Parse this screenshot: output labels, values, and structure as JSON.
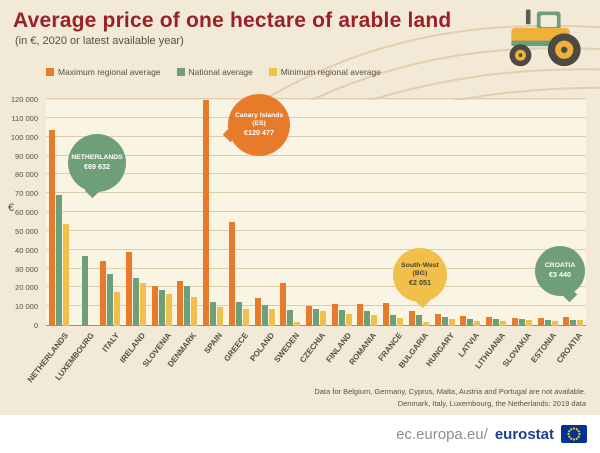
{
  "header": {
    "title": "Average price of one hectare of arable land",
    "subtitle": "(in €, 2020 or latest available year)"
  },
  "colors": {
    "maximum": "#e87b2a",
    "national": "#6f9f78",
    "minimum": "#f0c04a",
    "title_red": "#9b2126",
    "background": "#f3e9d7",
    "eu_blue": "#003399",
    "star_yellow": "#ffcc00"
  },
  "chart_data": {
    "type": "bar",
    "title": "Average price of one hectare of arable land",
    "subtitle": "(in €, 2020 or latest available year)",
    "ylabel": "€",
    "xlabel": "",
    "ylim": [
      0,
      120000
    ],
    "yticks": [
      0,
      10000,
      20000,
      30000,
      40000,
      50000,
      60000,
      70000,
      80000,
      90000,
      100000,
      110000,
      120000
    ],
    "grid": true,
    "legend_position": "top-left",
    "categories": [
      "NETHERLANDS",
      "LUXEMBOURG",
      "ITALY",
      "IRELAND",
      "SLOVENIA",
      "DENMARK",
      "SPAIN",
      "GREECE",
      "POLAND",
      "SWEDEN",
      "CZECHIA",
      "FINLAND",
      "ROMANIA",
      "FRANCE",
      "BULGARIA",
      "HUNGARY",
      "LATVIA",
      "LITHUANIA",
      "SLOVAKIA",
      "ESTONIA",
      "CROATIA"
    ],
    "series": [
      {
        "name": "Maximum regional average",
        "color": "#e87b2a",
        "values": [
          104000,
          null,
          34500,
          39500,
          21500,
          24000,
          120477,
          55000,
          15000,
          23000,
          10500,
          11500,
          11500,
          12000,
          8000,
          6500,
          5200,
          4800,
          4300,
          4100,
          4600
        ]
      },
      {
        "name": "National average",
        "color": "#6f9f78",
        "values": [
          69632,
          37000,
          27500,
          25500,
          19000,
          21500,
          13000,
          12800,
          11000,
          8500,
          9300,
          8700,
          8200,
          6000,
          5900,
          4900,
          3800,
          3700,
          3700,
          3300,
          3440
        ]
      },
      {
        "name": "Minimum regional average",
        "color": "#f0c04a",
        "values": [
          54000,
          null,
          18000,
          23000,
          17000,
          15500,
          10000,
          9000,
          9000,
          2000,
          8200,
          6500,
          6000,
          4500,
          2051,
          3900,
          2700,
          2800,
          3200,
          2600,
          3000
        ]
      }
    ],
    "callouts": [
      {
        "label": "NETHERLANDS",
        "value": "€69 632",
        "color": "green"
      },
      {
        "label": "Canary Islands (ES)",
        "value": "€120 477",
        "color": "orange"
      },
      {
        "label": "South-West (BG)",
        "value": "€2 051",
        "color": "yellow"
      },
      {
        "label": "CROATIA",
        "value": "€3 440",
        "color": "green"
      }
    ]
  },
  "notes": [
    "Data for Belgium, Germany, Cyprus, Malta, Austria and Portugal are not available.",
    "Denmark, Italy, Luxembourg, the Netherlands: 2019 data"
  ],
  "footer": {
    "url_prefix": "ec.europa.eu/",
    "url_bold": "eurostat"
  }
}
